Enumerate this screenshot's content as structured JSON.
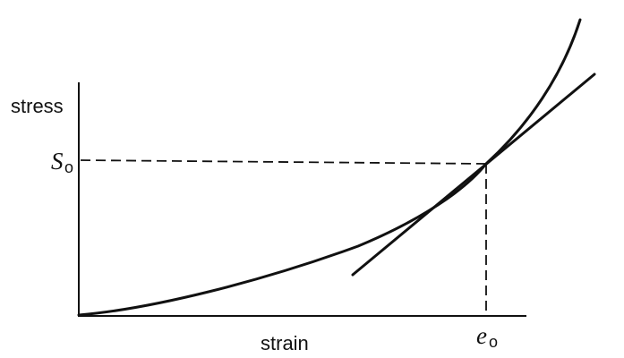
{
  "y_axis_label": "stress",
  "x_axis_label": "strain",
  "y_marker": {
    "symbol": "S",
    "subscript": "o"
  },
  "x_marker": {
    "symbol": "e",
    "subscript": "o"
  },
  "colors": {
    "ink": "#111111",
    "background": "#ffffff"
  }
}
